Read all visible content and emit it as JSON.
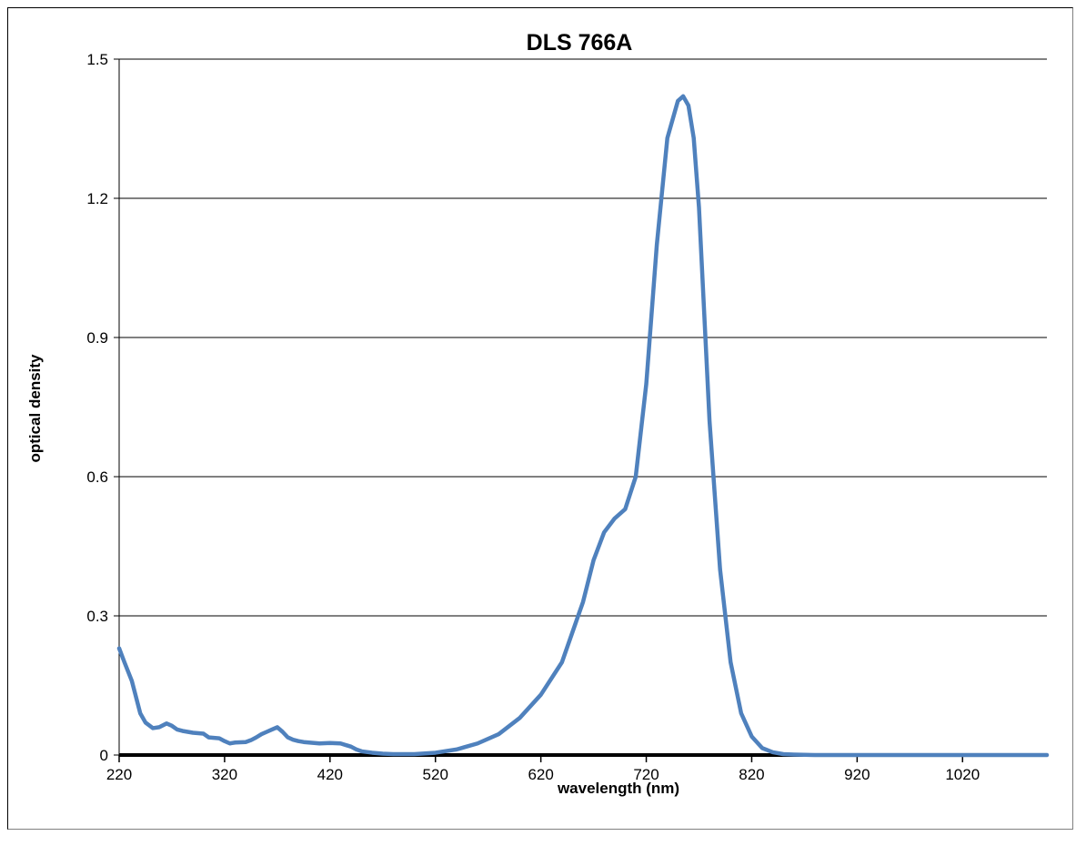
{
  "chart_data": {
    "type": "line",
    "title": "DLS 766A",
    "xlabel": "wavelength (nm)",
    "ylabel": "optical density",
    "xlim": [
      220,
      1100
    ],
    "ylim": [
      0,
      1.5
    ],
    "x_ticks": [
      220,
      320,
      420,
      520,
      620,
      720,
      820,
      920,
      1020
    ],
    "y_ticks": [
      0,
      0.3,
      0.6,
      0.9,
      1.2,
      1.5
    ],
    "y_tick_labels": [
      "0",
      "0.3",
      "0.6",
      "0.9",
      "1.2",
      "1.5"
    ],
    "grid": "horizontal",
    "legend": "none",
    "series_color": "#4F81BD",
    "series": [
      {
        "x": [
          220,
          225,
          232,
          240,
          245,
          252,
          258,
          265,
          270,
          275,
          280,
          285,
          290,
          300,
          305,
          310,
          315,
          320,
          325,
          330,
          340,
          345,
          350,
          355,
          360,
          365,
          370,
          375,
          380,
          385,
          390,
          395,
          400,
          410,
          420,
          430,
          440,
          445,
          450,
          460,
          470,
          480,
          500,
          520,
          540,
          560,
          580,
          600,
          620,
          640,
          660,
          670,
          680,
          690,
          700,
          710,
          720,
          730,
          740,
          750,
          755,
          760,
          765,
          770,
          775,
          780,
          790,
          800,
          810,
          820,
          830,
          840,
          850,
          860,
          880,
          900,
          950,
          1000,
          1050,
          1100
        ],
        "y": [
          0.23,
          0.2,
          0.16,
          0.09,
          0.07,
          0.058,
          0.06,
          0.068,
          0.063,
          0.055,
          0.052,
          0.05,
          0.048,
          0.046,
          0.038,
          0.037,
          0.036,
          0.03,
          0.025,
          0.027,
          0.028,
          0.032,
          0.038,
          0.045,
          0.05,
          0.055,
          0.06,
          0.05,
          0.038,
          0.033,
          0.03,
          0.028,
          0.027,
          0.025,
          0.026,
          0.025,
          0.018,
          0.012,
          0.008,
          0.005,
          0.003,
          0.002,
          0.002,
          0.005,
          0.012,
          0.025,
          0.045,
          0.08,
          0.13,
          0.2,
          0.33,
          0.42,
          0.48,
          0.51,
          0.53,
          0.6,
          0.8,
          1.1,
          1.33,
          1.41,
          1.42,
          1.4,
          1.33,
          1.18,
          0.95,
          0.72,
          0.4,
          0.2,
          0.09,
          0.04,
          0.015,
          0.006,
          0.002,
          0.001,
          0.0,
          0.0,
          0.0,
          0.0,
          0.0,
          0.0
        ]
      }
    ]
  }
}
